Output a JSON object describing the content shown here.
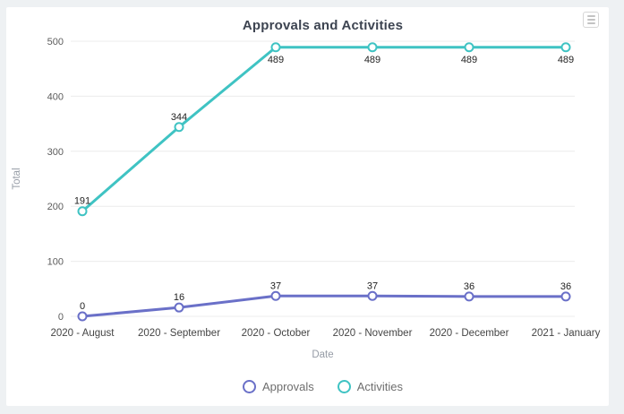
{
  "window": {
    "card_background": "#ffffff",
    "page_background": "#eef1f3"
  },
  "toolbar": {
    "menu_icon": "hamburger-menu-icon"
  },
  "chart_data": {
    "type": "line",
    "title": "Approvals and Activities",
    "xlabel": "Date",
    "ylabel": "Total",
    "categories": [
      "2020 - August",
      "2020 - September",
      "2020 - October",
      "2020 - November",
      "2020 - December",
      "2021 - January"
    ],
    "series": [
      {
        "name": "Approvals",
        "color": "#6a70c8",
        "values": [
          0,
          16,
          37,
          37,
          36,
          36
        ]
      },
      {
        "name": "Activities",
        "color": "#3fc3c3",
        "values": [
          191,
          344,
          489,
          489,
          489,
          489
        ]
      }
    ],
    "ylim": [
      0,
      500
    ],
    "yticks": [
      0,
      100,
      200,
      300,
      400,
      500
    ],
    "grid": "horizontal",
    "gridline_color": "#ececec",
    "data_labels": true,
    "data_label_color": "#1f1f1f",
    "tick_label_color": "#5c5c5c",
    "axis_title_color": "#969ca6",
    "legend_position": "bottom",
    "marker_style": "open-circle"
  }
}
